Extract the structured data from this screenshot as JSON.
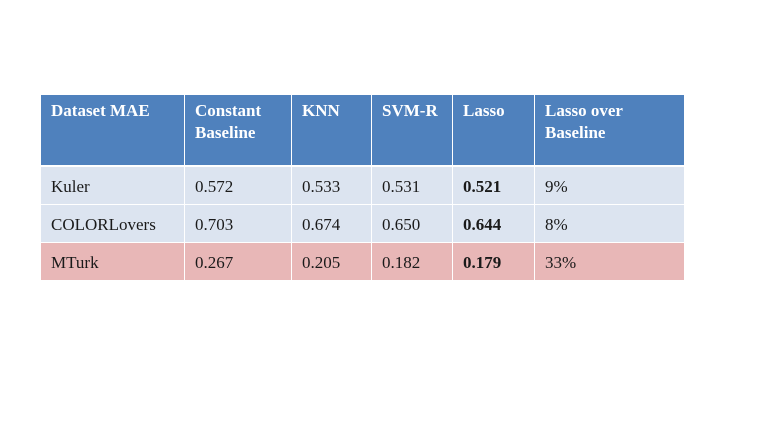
{
  "table": {
    "headers": [
      "Dataset MAE",
      "Constant Baseline",
      "KNN",
      "SVM-R",
      "Lasso",
      "Lasso over Baseline"
    ],
    "rows": [
      {
        "dataset": "Kuler",
        "constant_baseline": "0.572",
        "knn": "0.533",
        "svm_r": "0.531",
        "lasso": "0.521",
        "lasso_over_baseline": "9%"
      },
      {
        "dataset": "COLORLovers",
        "constant_baseline": "0.703",
        "knn": "0.674",
        "svm_r": "0.650",
        "lasso": "0.644",
        "lasso_over_baseline": "8%"
      },
      {
        "dataset": "MTurk",
        "constant_baseline": "0.267",
        "knn": "0.205",
        "svm_r": "0.182",
        "lasso": "0.179",
        "lasso_over_baseline": "33%"
      }
    ]
  },
  "colors": {
    "header_background": "#4f81bd",
    "row_blue": "#dce4f0",
    "row_highlight": "#e8b7b7"
  }
}
